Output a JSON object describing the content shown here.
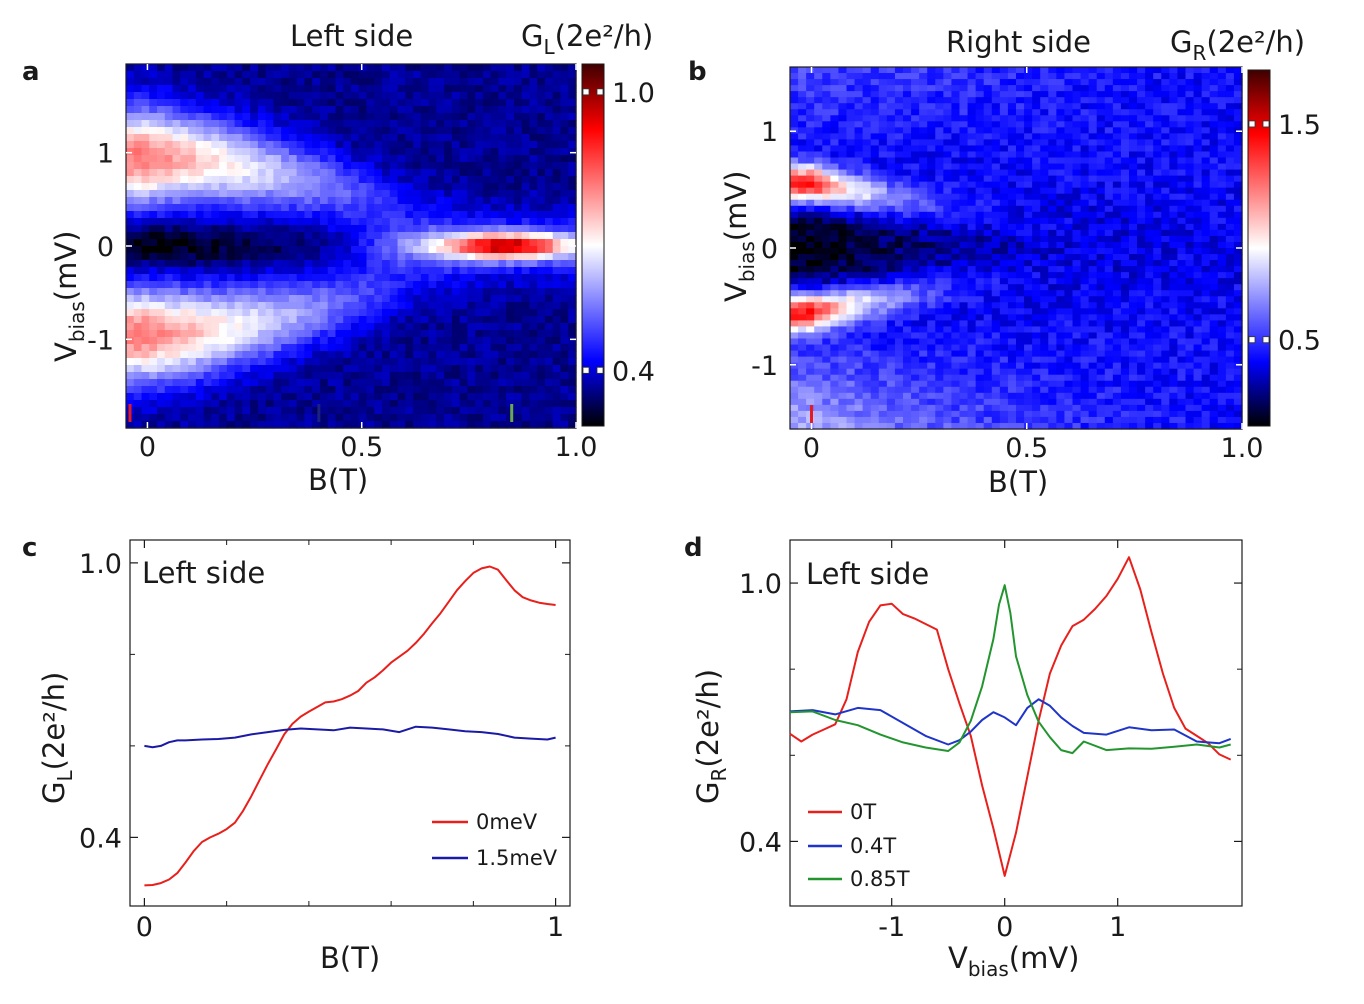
{
  "figure": {
    "panels": [
      {
        "letter": "a"
      },
      {
        "letter": "b"
      },
      {
        "letter": "c"
      },
      {
        "letter": "d"
      }
    ]
  },
  "chart_data": [
    {
      "panel": "a",
      "type": "heatmap",
      "title": "Left side",
      "xlabel": "B(T)",
      "ylabel_main": "V",
      "ylabel_sub": "bias",
      "ylabel_unit": "(mV)",
      "xlim": [
        -0.05,
        1.0
      ],
      "ylim": [
        -1.95,
        1.95
      ],
      "xticks": [
        0,
        0.5,
        1.0
      ],
      "xtick_labels": [
        "0",
        "0.5",
        "1.0"
      ],
      "yticks": [
        1,
        0,
        -1
      ],
      "ytick_labels": [
        "1",
        "0",
        "-1"
      ],
      "colorbar": {
        "label_main": "G",
        "label_sub": "L",
        "label_unit": "(2e²/h)",
        "range": [
          0.28,
          1.06
        ],
        "ticks": [
          1.0,
          0.4
        ],
        "tick_labels": [
          "1.0",
          "0.4"
        ]
      },
      "field_description": "High conductance peaks near ±1 mV at B=0 that converge with increasing B and merge into a zero-bias peak around B≈0.85 T; deep low-conductance gap at zero bias for small B.",
      "markers": [
        {
          "x": -0.05,
          "color": "#e41a1c"
        },
        {
          "x": 0.4,
          "color": "#1a237e"
        },
        {
          "x": 0.85,
          "color": "#6aa84f"
        }
      ],
      "cmap": [
        "#000000",
        "#0000ff",
        "#ffffff",
        "#ff0000",
        "#400000"
      ]
    },
    {
      "panel": "b",
      "type": "heatmap",
      "title": "Right side",
      "xlabel": "B(T)",
      "ylabel_main": "V",
      "ylabel_sub": "bias",
      "ylabel_unit": "(mV)",
      "xlim": [
        -0.05,
        1.0
      ],
      "ylim": [
        -1.55,
        1.55
      ],
      "xticks": [
        0,
        0.5,
        1.0
      ],
      "xtick_labels": [
        "0",
        "0.5",
        "1.0"
      ],
      "yticks": [
        1,
        0,
        -1
      ],
      "ytick_labels": [
        "1",
        "0",
        "-1"
      ],
      "colorbar": {
        "label_main": "G",
        "label_sub": "R",
        "label_unit": "(2e²/h)",
        "range": [
          0.1,
          1.75
        ],
        "ticks": [
          1.5,
          0.5
        ],
        "tick_labels": [
          "1.5",
          "0.5"
        ]
      },
      "field_description": "Coherence peaks near ±0.55 mV at B=0 fading with field; zero-bias gap closes gradually; no zero-bias peak.",
      "markers": [
        {
          "x": 0.0,
          "color": "#e41a1c"
        }
      ],
      "cmap": [
        "#000000",
        "#0000ff",
        "#ffffff",
        "#ff0000",
        "#400000"
      ]
    },
    {
      "panel": "c",
      "type": "line",
      "title": "Left side",
      "xlabel": "B(T)",
      "ylabel_main": "G",
      "ylabel_sub": "L",
      "ylabel_unit": "(2e²/h)",
      "xlim": [
        -0.035,
        1.035
      ],
      "ylim": [
        0.25,
        1.05
      ],
      "xticks": [
        0,
        1
      ],
      "xtick_labels": [
        "0",
        "1"
      ],
      "minor_xticks": [
        0.2,
        0.4,
        0.6,
        0.8
      ],
      "yticks": [
        1.0,
        0.4
      ],
      "ytick_labels": [
        "1.0",
        "0.4"
      ],
      "minor_yticks": [
        0.8,
        0.6
      ],
      "series": [
        {
          "name": "0meV",
          "color": "#e8201c",
          "x": [
            0,
            0.02,
            0.04,
            0.06,
            0.08,
            0.1,
            0.12,
            0.14,
            0.16,
            0.18,
            0.2,
            0.22,
            0.24,
            0.26,
            0.28,
            0.3,
            0.32,
            0.34,
            0.36,
            0.38,
            0.4,
            0.42,
            0.44,
            0.46,
            0.48,
            0.5,
            0.52,
            0.54,
            0.56,
            0.58,
            0.6,
            0.62,
            0.64,
            0.66,
            0.68,
            0.7,
            0.72,
            0.74,
            0.76,
            0.78,
            0.8,
            0.82,
            0.84,
            0.86,
            0.88,
            0.9,
            0.92,
            0.94,
            0.96,
            0.98,
            1.0
          ],
          "values": [
            0.295,
            0.296,
            0.3,
            0.308,
            0.322,
            0.345,
            0.37,
            0.39,
            0.4,
            0.408,
            0.418,
            0.432,
            0.458,
            0.49,
            0.525,
            0.56,
            0.592,
            0.625,
            0.648,
            0.664,
            0.675,
            0.685,
            0.695,
            0.697,
            0.702,
            0.71,
            0.72,
            0.738,
            0.75,
            0.765,
            0.782,
            0.795,
            0.808,
            0.825,
            0.845,
            0.868,
            0.89,
            0.915,
            0.94,
            0.96,
            0.978,
            0.988,
            0.992,
            0.985,
            0.962,
            0.94,
            0.925,
            0.918,
            0.913,
            0.91,
            0.908
          ]
        },
        {
          "name": "1.5meV",
          "color": "#1a1aa6",
          "x": [
            0,
            0.02,
            0.04,
            0.06,
            0.08,
            0.1,
            0.14,
            0.18,
            0.22,
            0.26,
            0.3,
            0.34,
            0.38,
            0.42,
            0.46,
            0.5,
            0.54,
            0.58,
            0.62,
            0.66,
            0.7,
            0.74,
            0.78,
            0.82,
            0.86,
            0.9,
            0.94,
            0.98,
            1.0
          ],
          "values": [
            0.6,
            0.597,
            0.6,
            0.608,
            0.612,
            0.612,
            0.614,
            0.615,
            0.618,
            0.625,
            0.63,
            0.635,
            0.638,
            0.636,
            0.634,
            0.64,
            0.638,
            0.636,
            0.63,
            0.642,
            0.64,
            0.636,
            0.632,
            0.63,
            0.626,
            0.618,
            0.616,
            0.614,
            0.618
          ]
        }
      ]
    },
    {
      "panel": "d",
      "type": "line",
      "title": "Left side",
      "xlabel_main": "V",
      "xlabel_sub": "bias",
      "xlabel_unit": "(mV)",
      "ylabel_main": "G",
      "ylabel_sub": "R",
      "ylabel_unit": "(2e²/h)",
      "xlim": [
        -1.9,
        2.1
      ],
      "ylim": [
        0.25,
        1.1
      ],
      "xticks": [
        -1,
        0,
        1
      ],
      "xtick_labels": [
        "-1",
        "0",
        "1"
      ],
      "yticks": [
        1.0,
        0.4
      ],
      "ytick_labels": [
        "1.0",
        "0.4"
      ],
      "minor_yticks": [
        0.8,
        0.6
      ],
      "series": [
        {
          "name": "0T",
          "color": "#e8201c",
          "x": [
            -1.9,
            -1.8,
            -1.7,
            -1.6,
            -1.5,
            -1.4,
            -1.3,
            -1.2,
            -1.1,
            -1.0,
            -0.9,
            -0.8,
            -0.7,
            -0.6,
            -0.5,
            -0.4,
            -0.3,
            -0.2,
            -0.1,
            0.0,
            0.1,
            0.2,
            0.3,
            0.4,
            0.5,
            0.6,
            0.7,
            0.8,
            0.9,
            1.0,
            1.1,
            1.2,
            1.3,
            1.4,
            1.5,
            1.6,
            1.7,
            1.8,
            1.9,
            2.0
          ],
          "values": [
            0.65,
            0.632,
            0.648,
            0.66,
            0.672,
            0.73,
            0.84,
            0.91,
            0.948,
            0.952,
            0.928,
            0.918,
            0.905,
            0.892,
            0.8,
            0.72,
            0.645,
            0.53,
            0.43,
            0.32,
            0.42,
            0.55,
            0.68,
            0.79,
            0.855,
            0.9,
            0.915,
            0.94,
            0.97,
            1.01,
            1.06,
            0.985,
            0.885,
            0.79,
            0.71,
            0.662,
            0.645,
            0.628,
            0.602,
            0.59
          ]
        },
        {
          "name": "0.4T",
          "color": "#1f34c8",
          "x": [
            -1.9,
            -1.7,
            -1.5,
            -1.3,
            -1.1,
            -0.9,
            -0.7,
            -0.5,
            -0.4,
            -0.3,
            -0.2,
            -0.1,
            0.0,
            0.1,
            0.2,
            0.3,
            0.4,
            0.5,
            0.6,
            0.7,
            0.9,
            1.1,
            1.3,
            1.5,
            1.7,
            1.9,
            2.0
          ],
          "values": [
            0.702,
            0.705,
            0.695,
            0.71,
            0.705,
            0.675,
            0.645,
            0.625,
            0.635,
            0.655,
            0.682,
            0.7,
            0.688,
            0.67,
            0.71,
            0.73,
            0.715,
            0.688,
            0.668,
            0.652,
            0.648,
            0.665,
            0.658,
            0.66,
            0.632,
            0.628,
            0.638
          ]
        },
        {
          "name": "0.85T",
          "color": "#23952f",
          "x": [
            -1.9,
            -1.7,
            -1.5,
            -1.3,
            -1.1,
            -0.9,
            -0.7,
            -0.5,
            -0.4,
            -0.3,
            -0.2,
            -0.1,
            -0.05,
            0.0,
            0.05,
            0.1,
            0.2,
            0.3,
            0.4,
            0.5,
            0.6,
            0.7,
            0.9,
            1.1,
            1.3,
            1.5,
            1.7,
            1.9,
            2.0
          ],
          "values": [
            0.7,
            0.702,
            0.682,
            0.67,
            0.648,
            0.63,
            0.618,
            0.61,
            0.63,
            0.68,
            0.76,
            0.87,
            0.95,
            0.995,
            0.93,
            0.83,
            0.74,
            0.678,
            0.642,
            0.612,
            0.605,
            0.632,
            0.612,
            0.616,
            0.615,
            0.62,
            0.625,
            0.618,
            0.625
          ]
        }
      ]
    }
  ]
}
